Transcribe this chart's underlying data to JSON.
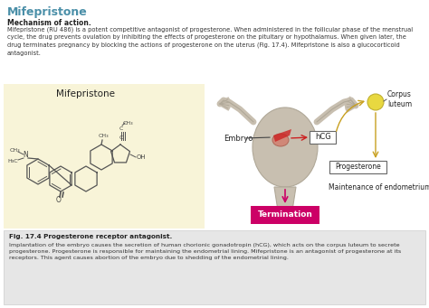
{
  "title": "Mifepristone",
  "title_color": "#4a8fa8",
  "bg_color": "#ffffff",
  "section1_header": "Mechanism of action.",
  "section1_text": "Mifepristone (RU 486) is a potent competitive antagonist of progesterone. When administered in the follicular phase of the menstrual\ncycle, the drug prevents ovulation by inhibiting the effects of progesterone on the pituitary or hypothalamus. When given later, the\ndrug terminates pregnancy by blocking the actions of progesterone on the uterus (Fig. 17.4). Mifepristone is also a glucocorticoid\nantagonist.",
  "diagram_bg": "#f8f4d8",
  "diagram_label": "Mifepristone",
  "corpus_label": "Corpus\nluteum",
  "embryo_label": "Embryo",
  "hcg_label": "hCG",
  "progesterone_label": "Progesterone",
  "maintenance_label": "Maintenance of endometrium",
  "termination_label": "Termination",
  "termination_color": "#cc0066",
  "fig_bg": "#e8e8e8",
  "fig_caption_bold": "Fig. 17.4 Progesterone receptor antagonist.",
  "fig_caption_text": "Implantation of the embryo causes the secretion of human chorionic gonadotropin (hCG), which acts on the corpus luteum to secrete\nprogesterone. Progesterone is responsible for maintaining the endometrial lining. Mifepristone is an antagonist of progesterone at its\nreceptors. This agent causes abortion of the embryo due to shedding of the endometrial lining.",
  "uterus_color": "#c8bfb0",
  "uterus_edge": "#b0a898",
  "corpus_color": "#e8d840",
  "corpus_edge": "#c0b030",
  "embryo_color": "#d08878",
  "embryo_edge": "#b06858"
}
